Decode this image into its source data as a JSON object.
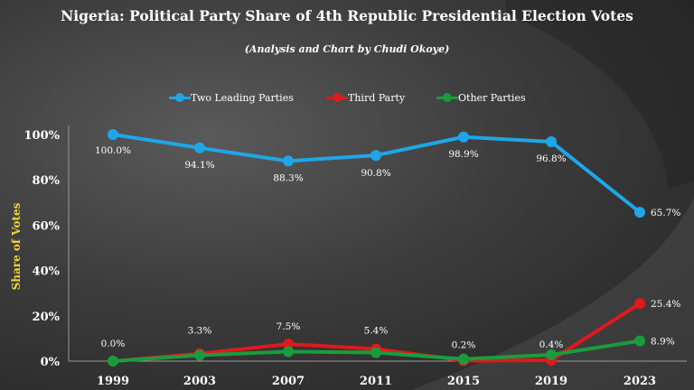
{
  "chart_data": {
    "type": "line",
    "title": "Nigeria: Political Party Share of 4th Republic Presidential Election Votes",
    "subtitle": "(Analysis and Chart by Chudi Okoye)",
    "ylabel": "Share of Votes",
    "xlabel": "",
    "x": [
      "1999",
      "2003",
      "2007",
      "2011",
      "2015",
      "2019",
      "2023"
    ],
    "ylim": [
      0,
      100
    ],
    "yticks": [
      "0%",
      "20%",
      "40%",
      "60%",
      "80%",
      "100%"
    ],
    "ytick_values": [
      0,
      20,
      40,
      60,
      80,
      100
    ],
    "grid": false,
    "legend_position": "top",
    "series": [
      {
        "name": "Two Leading Parties",
        "color": "#1fa6e8",
        "values": [
          100.0,
          94.1,
          88.3,
          90.8,
          98.9,
          96.8,
          65.7
        ],
        "labels": [
          "100.0%",
          "94.1%",
          "88.3%",
          "90.8%",
          "98.9%",
          "96.8%",
          "65.7%"
        ]
      },
      {
        "name": "Third Party",
        "color": "#e0191b",
        "values": [
          0.0,
          3.3,
          7.5,
          5.4,
          0.2,
          0.4,
          25.4
        ],
        "labels": [
          "0.0%",
          "3.3%",
          "7.5%",
          "5.4%",
          "0.2%",
          "0.4%",
          "25.4%"
        ]
      },
      {
        "name": "Other Parties",
        "color": "#1a9c3e",
        "values": [
          0.0,
          2.6,
          4.2,
          3.8,
          0.9,
          2.8,
          8.9
        ],
        "labels": [
          "",
          "",
          "",
          "",
          "",
          "",
          "8.9%"
        ]
      }
    ]
  }
}
